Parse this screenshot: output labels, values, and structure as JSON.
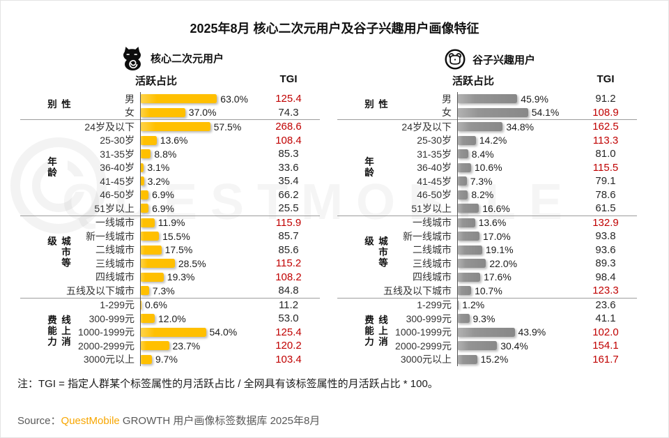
{
  "title": "2025年8月 核心二次元用户及谷子兴趣用户画像特征",
  "watermark": "QUESTMOBILE",
  "note": "注：TGI = 指定人群某个标签属性的月活跃占比 / 全网具有该标签属性的月活跃占比 * 100。",
  "source": {
    "label": "Source：",
    "brand": "QuestMobile",
    "rest": " GROWTH 用户画像标签数据库 2025年8月"
  },
  "colors": {
    "bar_left": "#FFC000",
    "bar_right": "#8F8F8F",
    "tgi_above_100": "#C00000",
    "tgi_normal": "#262626",
    "brand_orange": "#F7A600"
  },
  "chart_data": [
    {
      "type": "bar",
      "orientation": "horizontal",
      "legend": "核心二次元用户",
      "legend_icon": "cat-icon",
      "columns": {
        "active": "活跃占比",
        "tgi": "TGI"
      },
      "value_unit": "%",
      "groups": [
        {
          "label": "性别",
          "rows": [
            {
              "label": "男",
              "pct": 63.0,
              "tgi": 125.4
            },
            {
              "label": "女",
              "pct": 37.0,
              "tgi": 74.3
            }
          ]
        },
        {
          "label": "年龄",
          "rows": [
            {
              "label": "24岁及以下",
              "pct": 57.5,
              "tgi": 268.6
            },
            {
              "label": "25-30岁",
              "pct": 13.6,
              "tgi": 108.4
            },
            {
              "label": "31-35岁",
              "pct": 8.8,
              "tgi": 85.3
            },
            {
              "label": "36-40岁",
              "pct": 3.1,
              "tgi": 33.6
            },
            {
              "label": "41-45岁",
              "pct": 3.2,
              "tgi": 35.4
            },
            {
              "label": "46-50岁",
              "pct": 6.9,
              "tgi": 66.2
            },
            {
              "label": "51岁以上",
              "pct": 6.9,
              "tgi": 25.5
            }
          ]
        },
        {
          "label": "城市等级",
          "rows": [
            {
              "label": "一线城市",
              "pct": 11.9,
              "tgi": 115.9
            },
            {
              "label": "新一线城市",
              "pct": 15.5,
              "tgi": 85.7
            },
            {
              "label": "二线城市",
              "pct": 17.5,
              "tgi": 85.6
            },
            {
              "label": "三线城市",
              "pct": 28.5,
              "tgi": 115.2
            },
            {
              "label": "四线城市",
              "pct": 19.3,
              "tgi": 108.2
            },
            {
              "label": "五线及以下城市",
              "pct": 7.3,
              "tgi": 84.8
            }
          ]
        },
        {
          "label": "线上消费能力",
          "rows": [
            {
              "label": "1-299元",
              "pct": 0.6,
              "tgi": 11.2
            },
            {
              "label": "300-999元",
              "pct": 12.0,
              "tgi": 53.0
            },
            {
              "label": "1000-1999元",
              "pct": 54.0,
              "tgi": 125.4
            },
            {
              "label": "2000-2999元",
              "pct": 23.7,
              "tgi": 120.2
            },
            {
              "label": "3000元以上",
              "pct": 9.7,
              "tgi": 103.4
            }
          ]
        }
      ]
    },
    {
      "type": "bar",
      "orientation": "horizontal",
      "legend": "谷子兴趣用户",
      "legend_icon": "bear-icon",
      "columns": {
        "active": "活跃占比",
        "tgi": "TGI"
      },
      "value_unit": "%",
      "groups": [
        {
          "label": "性别",
          "rows": [
            {
              "label": "男",
              "pct": 45.9,
              "tgi": 91.2
            },
            {
              "label": "女",
              "pct": 54.1,
              "tgi": 108.9
            }
          ]
        },
        {
          "label": "年龄",
          "rows": [
            {
              "label": "24岁及以下",
              "pct": 34.8,
              "tgi": 162.5
            },
            {
              "label": "25-30岁",
              "pct": 14.2,
              "tgi": 113.3
            },
            {
              "label": "31-35岁",
              "pct": 8.4,
              "tgi": 81.0
            },
            {
              "label": "36-40岁",
              "pct": 10.6,
              "tgi": 115.5
            },
            {
              "label": "41-45岁",
              "pct": 7.3,
              "tgi": 79.1
            },
            {
              "label": "46-50岁",
              "pct": 8.2,
              "tgi": 78.6
            },
            {
              "label": "51岁以上",
              "pct": 16.6,
              "tgi": 61.5
            }
          ]
        },
        {
          "label": "城市等级",
          "rows": [
            {
              "label": "一线城市",
              "pct": 13.6,
              "tgi": 132.9
            },
            {
              "label": "新一线城市",
              "pct": 17.0,
              "tgi": 93.8
            },
            {
              "label": "二线城市",
              "pct": 19.1,
              "tgi": 93.6
            },
            {
              "label": "三线城市",
              "pct": 22.0,
              "tgi": 89.3
            },
            {
              "label": "四线城市",
              "pct": 17.6,
              "tgi": 98.4
            },
            {
              "label": "五线及以下城市",
              "pct": 10.7,
              "tgi": 123.3
            }
          ]
        },
        {
          "label": "线上消费能力",
          "rows": [
            {
              "label": "1-299元",
              "pct": 1.2,
              "tgi": 23.6
            },
            {
              "label": "300-999元",
              "pct": 9.3,
              "tgi": 41.1
            },
            {
              "label": "1000-1999元",
              "pct": 43.9,
              "tgi": 102.0
            },
            {
              "label": "2000-2999元",
              "pct": 30.4,
              "tgi": 154.1
            },
            {
              "label": "3000元以上",
              "pct": 15.2,
              "tgi": 161.7
            }
          ]
        }
      ]
    }
  ]
}
